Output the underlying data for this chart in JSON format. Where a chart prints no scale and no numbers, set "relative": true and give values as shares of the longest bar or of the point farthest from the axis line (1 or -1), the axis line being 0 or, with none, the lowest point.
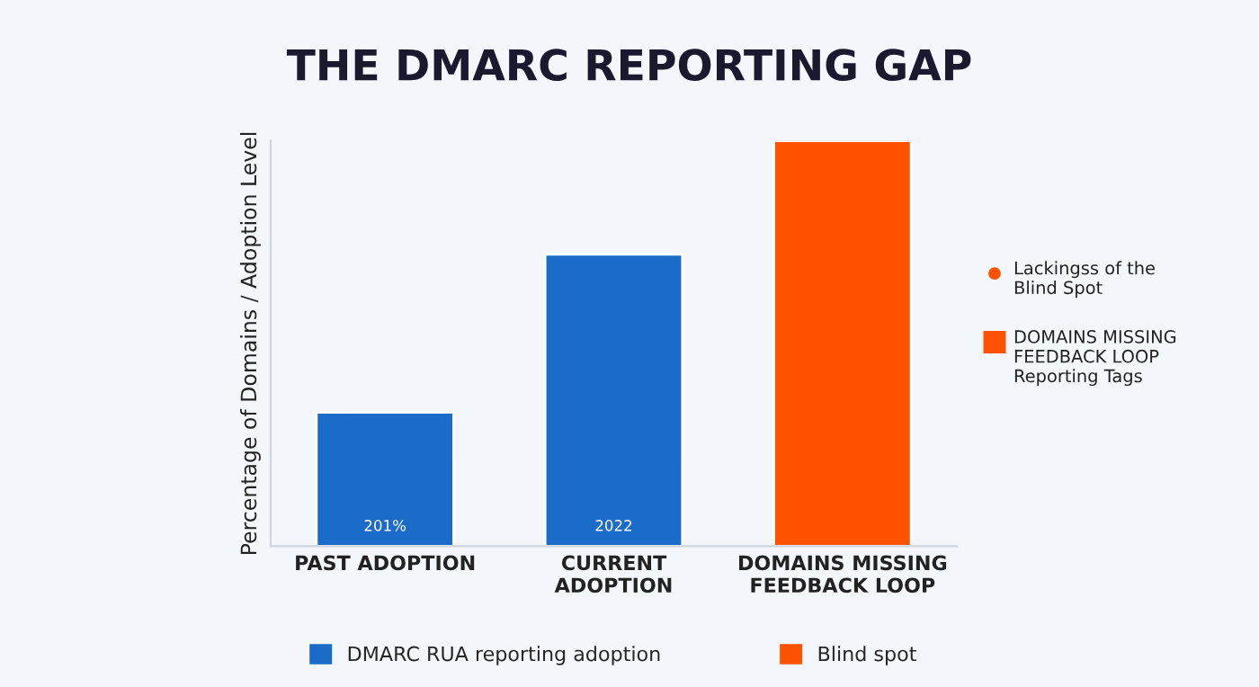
{
  "chart_data": {
    "type": "bar",
    "title": "THE DMARC REPORTING GAP",
    "ylabel": "Percentage of Domains / Adoption Level",
    "categories": [
      "PAST ADOPTION",
      "CURRENT\nADOPTION",
      "DOMAINS MISSING\nFEEDBACK LOOP"
    ],
    "relative": true,
    "series": [
      {
        "name": "DMARC RUA reporting adoption",
        "color": "#1b6cc8",
        "values": [
          0.33,
          0.72,
          null
        ]
      },
      {
        "name": "Blind spot",
        "color": "#ff5200",
        "values": [
          null,
          null,
          1
        ]
      }
    ],
    "annotations": [
      "201%",
      "2022",
      "Lackingss of the\nBlind Spot",
      "DOMAINS MISSING\nFEEDBACK LOOP\nReporting Tags"
    ],
    "legend": "bottom",
    "grid": false
  }
}
